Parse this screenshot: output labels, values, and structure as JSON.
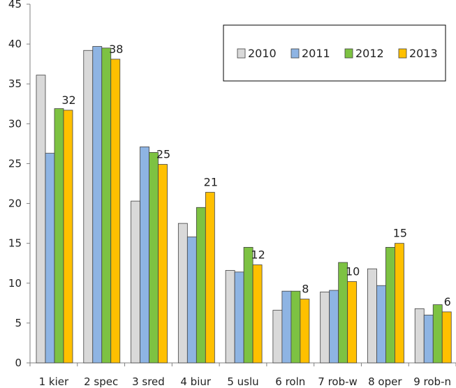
{
  "chart_data": {
    "type": "bar",
    "title": "",
    "xlabel": "",
    "ylabel": "",
    "ylim": [
      0,
      45
    ],
    "yticks": [
      0,
      5,
      10,
      15,
      20,
      25,
      30,
      35,
      40,
      45
    ],
    "grid": false,
    "legend_position": "top-right",
    "categories": [
      "1 kier",
      "2 spec",
      "3 sred",
      "4 biur",
      "5 uslu",
      "6 roln",
      "7 rob-w",
      "8 oper",
      "9 rob-n"
    ],
    "series": [
      {
        "name": "2010",
        "color": "#d9d9d9",
        "values": [
          36.1,
          39.2,
          20.3,
          17.5,
          11.6,
          6.6,
          8.9,
          11.8,
          6.8
        ]
      },
      {
        "name": "2011",
        "color": "#8eb4e3",
        "values": [
          26.3,
          39.7,
          27.1,
          15.8,
          11.4,
          9.0,
          9.1,
          9.7,
          6.0
        ]
      },
      {
        "name": "2012",
        "color": "#7dc242",
        "values": [
          31.9,
          39.5,
          26.4,
          19.5,
          14.5,
          9.0,
          12.6,
          14.5,
          7.3
        ]
      },
      {
        "name": "2013",
        "color": "#ffc000",
        "values": [
          31.7,
          38.1,
          24.9,
          21.4,
          12.3,
          8.0,
          10.2,
          15.0,
          6.4
        ]
      }
    ],
    "data_labels": [
      "32",
      "38",
      "25",
      "21",
      "12",
      "8",
      "10",
      "15",
      "6"
    ]
  }
}
